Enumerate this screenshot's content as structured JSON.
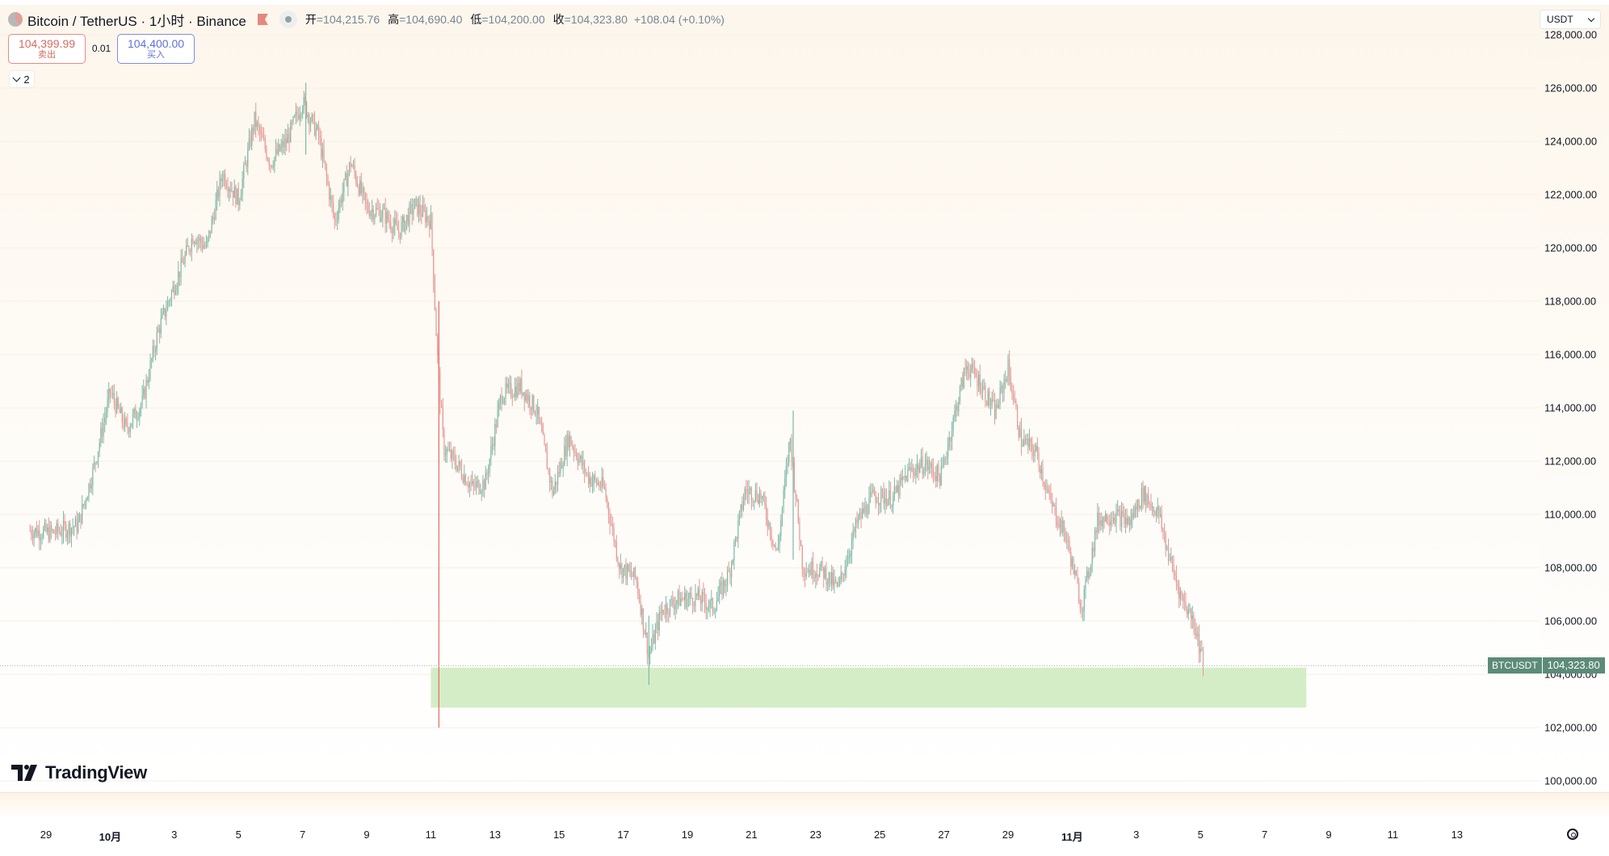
{
  "header": {
    "symbol_title": "Bitcoin / TetherUS · 1小时 · Binance",
    "open_label": "开",
    "open_value": "=104,215.76",
    "high_label": "高",
    "high_value": "=104,690.40",
    "low_label": "低",
    "low_value": "=104,200.00",
    "close_label": "收",
    "close_value": "=104,323.80",
    "change": "+108.04 (+0.10%)"
  },
  "trade": {
    "sell_price": "104,399.99",
    "sell_label": "卖出",
    "spread": "0.01",
    "buy_price": "104,400.00",
    "buy_label": "买入"
  },
  "indicators": {
    "collapsed_count": "2"
  },
  "currency": {
    "selected": "USDT"
  },
  "last_price": {
    "symbol": "BTCUSDT",
    "value": "104,323.80"
  },
  "logo": {
    "text": "TradingView"
  },
  "colors": {
    "up": "#7fb9a6",
    "down": "#e39a95",
    "zone": "#d5edc6",
    "last_price_bg": "#5c8b78"
  },
  "icons": [
    "btc-symbol-icon",
    "flag-icon",
    "market-status-icon",
    "chevron-down-icon",
    "settings-icon",
    "tradingview-logo-icon"
  ],
  "chart_data": {
    "type": "candlestick",
    "interval": "1h",
    "y_axis": {
      "range": [
        100000,
        128000
      ],
      "ticks": [
        "100,000.00",
        "102,000.00",
        "104,000.00",
        "106,000.00",
        "108,000.00",
        "110,000.00",
        "112,000.00",
        "114,000.00",
        "116,000.00",
        "118,000.00",
        "120,000.00",
        "122,000.00",
        "124,000.00",
        "126,000.00",
        "128,000.00"
      ]
    },
    "x_axis": {
      "ticks": [
        {
          "label": "29",
          "day": 0
        },
        {
          "label": "10月",
          "day": 2,
          "bold": true
        },
        {
          "label": "3",
          "day": 4
        },
        {
          "label": "5",
          "day": 6
        },
        {
          "label": "7",
          "day": 8
        },
        {
          "label": "9",
          "day": 10
        },
        {
          "label": "11",
          "day": 12
        },
        {
          "label": "13",
          "day": 14
        },
        {
          "label": "15",
          "day": 16
        },
        {
          "label": "17",
          "day": 18
        },
        {
          "label": "19",
          "day": 20
        },
        {
          "label": "21",
          "day": 22
        },
        {
          "label": "23",
          "day": 24
        },
        {
          "label": "25",
          "day": 26
        },
        {
          "label": "27",
          "day": 28
        },
        {
          "label": "29",
          "day": 30
        },
        {
          "label": "11月",
          "day": 32,
          "bold": true
        },
        {
          "label": "3",
          "day": 34
        },
        {
          "label": "5",
          "day": 36
        },
        {
          "label": "7",
          "day": 38
        },
        {
          "label": "9",
          "day": 40
        },
        {
          "label": "11",
          "day": 42
        },
        {
          "label": "13",
          "day": 44
        }
      ]
    },
    "price_path": [
      [
        -0.5,
        109400
      ],
      [
        0.2,
        109300
      ],
      [
        1,
        109600
      ],
      [
        1.5,
        111800
      ],
      [
        2,
        114600
      ],
      [
        2.5,
        113200
      ],
      [
        3,
        114200
      ],
      [
        3.5,
        116900
      ],
      [
        4,
        118600
      ],
      [
        4.6,
        120500
      ],
      [
        5,
        120000
      ],
      [
        5.5,
        122800
      ],
      [
        6,
        121800
      ],
      [
        6.5,
        124800
      ],
      [
        7,
        123200
      ],
      [
        7.5,
        124000
      ],
      [
        8,
        125500
      ],
      [
        8.5,
        124200
      ],
      [
        9,
        121000
      ],
      [
        9.5,
        123200
      ],
      [
        10,
        121500
      ],
      [
        10.5,
        121300
      ],
      [
        11,
        120600
      ],
      [
        11.5,
        121600
      ],
      [
        12,
        121000
      ],
      [
        12.2,
        116000
      ],
      [
        12.4,
        112500
      ],
      [
        12.8,
        111900
      ],
      [
        13.3,
        111000
      ],
      [
        13.7,
        111200
      ],
      [
        14.2,
        114500
      ],
      [
        14.8,
        114800
      ],
      [
        15.3,
        113900
      ],
      [
        15.8,
        110800
      ],
      [
        16.3,
        112900
      ],
      [
        16.9,
        111400
      ],
      [
        17.4,
        111000
      ],
      [
        17.9,
        108000
      ],
      [
        18.4,
        107600
      ],
      [
        18.8,
        104700
      ],
      [
        19.2,
        106400
      ],
      [
        19.7,
        106800
      ],
      [
        20.3,
        106900
      ],
      [
        20.8,
        106500
      ],
      [
        21.3,
        107800
      ],
      [
        21.8,
        110900
      ],
      [
        22.3,
        110700
      ],
      [
        22.8,
        108500
      ],
      [
        23.2,
        112900
      ],
      [
        23.6,
        108000
      ],
      [
        24.2,
        107900
      ],
      [
        24.7,
        107200
      ],
      [
        25.3,
        109700
      ],
      [
        25.8,
        110700
      ],
      [
        26.4,
        110600
      ],
      [
        26.9,
        111600
      ],
      [
        27.4,
        111900
      ],
      [
        27.9,
        111400
      ],
      [
        28.4,
        114100
      ],
      [
        28.7,
        115600
      ],
      [
        29.1,
        115000
      ],
      [
        29.6,
        113800
      ],
      [
        30.0,
        115500
      ],
      [
        30.4,
        112800
      ],
      [
        30.9,
        112300
      ],
      [
        31.3,
        110500
      ],
      [
        31.8,
        109200
      ],
      [
        32.3,
        106500
      ],
      [
        32.8,
        109800
      ],
      [
        33.3,
        110000
      ],
      [
        33.8,
        109700
      ],
      [
        34.2,
        110800
      ],
      [
        34.7,
        110000
      ],
      [
        35.0,
        108500
      ],
      [
        35.4,
        106900
      ],
      [
        35.8,
        106000
      ],
      [
        36.1,
        104324
      ]
    ],
    "events": [
      {
        "day": 12.25,
        "low": 102000,
        "high": 118000,
        "note": "flash wick"
      },
      {
        "day": 18.8,
        "low": 103600,
        "high": 106200
      },
      {
        "day": 23.3,
        "low": 108300,
        "high": 113900
      },
      {
        "day": 8.1,
        "low": 123500,
        "high": 126200
      }
    ],
    "zone": {
      "day_start": 12.0,
      "day_end": 39.3,
      "price_low": 102750,
      "price_high": 104250
    },
    "last_price": 104323.8
  }
}
